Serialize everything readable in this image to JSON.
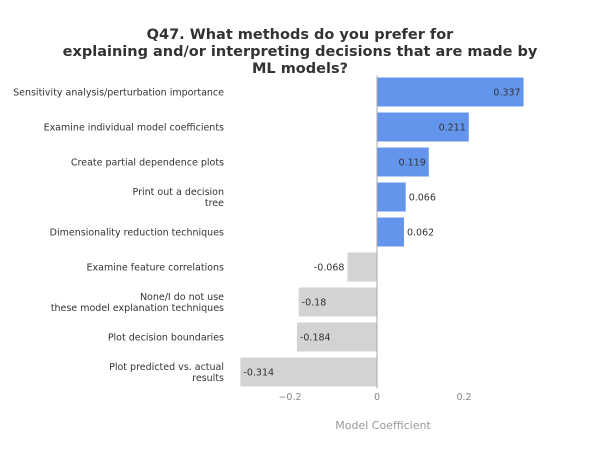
{
  "chart_data": {
    "type": "bar",
    "orientation": "horizontal",
    "title_lines": [
      "Q47. What methods do you prefer for",
      "explaining and/or interpreting decisions that are made by",
      "ML models?"
    ],
    "xlabel": "Model Coefficient",
    "xlim": [
      -0.33,
      0.35
    ],
    "x_ticks": [
      {
        "value": -0.2,
        "label": "−0.2"
      },
      {
        "value": 0,
        "label": "0"
      },
      {
        "value": 0.2,
        "label": "0.2"
      }
    ],
    "grid": false,
    "categories": [
      {
        "label_lines": [
          "Sensitivity analysis/perturbation importance"
        ],
        "value": 0.337,
        "value_label": "0.337"
      },
      {
        "label_lines": [
          "Examine individual model coefficients"
        ],
        "value": 0.211,
        "value_label": "0.211"
      },
      {
        "label_lines": [
          "Create partial dependence plots"
        ],
        "value": 0.119,
        "value_label": "0.119"
      },
      {
        "label_lines": [
          "Print out a decision",
          "tree"
        ],
        "value": 0.066,
        "value_label": "0.066"
      },
      {
        "label_lines": [
          "Dimensionality reduction techniques"
        ],
        "value": 0.062,
        "value_label": "0.062"
      },
      {
        "label_lines": [
          "Examine feature correlations"
        ],
        "value": -0.068,
        "value_label": "-0.068"
      },
      {
        "label_lines": [
          "None/I do not use",
          "these model explanation techniques"
        ],
        "value": -0.18,
        "value_label": "-0.18"
      },
      {
        "label_lines": [
          "Plot decision boundaries"
        ],
        "value": -0.184,
        "value_label": "-0.184"
      },
      {
        "label_lines": [
          "Plot predicted vs. actual",
          "results"
        ],
        "value": -0.314,
        "value_label": "-0.314"
      }
    ],
    "colors": {
      "positive": "#6495ED",
      "negative": "#D3D3D3",
      "zero_line": "#AAAAAA"
    }
  }
}
